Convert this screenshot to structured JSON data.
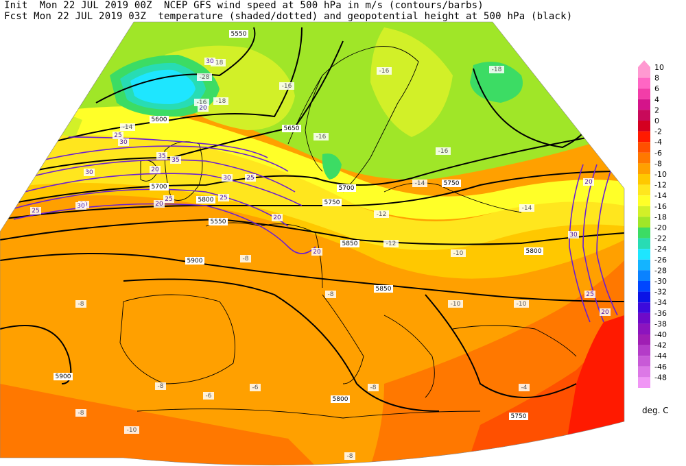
{
  "header": {
    "line1": "Init  Mon 22 JUL 2019 00Z  NCEP GFS wind speed at 500 hPa in m/s (contours/barbs)",
    "line2": "Fcst Mon 22 JUL 2019 03Z  temperature (shaded/dotted) and geopotential height at 500 hPa (black)"
  },
  "colorbar": {
    "unit_label": "deg. C",
    "entries": [
      {
        "label": "10",
        "color": "#ff99d1"
      },
      {
        "label": "8",
        "color": "#ff66c4"
      },
      {
        "label": "6",
        "color": "#f23da8"
      },
      {
        "label": "4",
        "color": "#d4148a"
      },
      {
        "label": "2",
        "color": "#c80a5a"
      },
      {
        "label": "0",
        "color": "#d40020"
      },
      {
        "label": "-2",
        "color": "#ff1a00"
      },
      {
        "label": "-4",
        "color": "#ff5000"
      },
      {
        "label": "-6",
        "color": "#ff7800"
      },
      {
        "label": "-8",
        "color": "#ffa000"
      },
      {
        "label": "-10",
        "color": "#ffc800"
      },
      {
        "label": "-12",
        "color": "#ffe61e"
      },
      {
        "label": "-14",
        "color": "#ffff28"
      },
      {
        "label": "-16",
        "color": "#d2f028"
      },
      {
        "label": "-18",
        "color": "#a0e628"
      },
      {
        "label": "-20",
        "color": "#3cdc64"
      },
      {
        "label": "-22",
        "color": "#28dcb4"
      },
      {
        "label": "-24",
        "color": "#1ee6ff"
      },
      {
        "label": "-26",
        "color": "#14b4ff"
      },
      {
        "label": "-28",
        "color": "#0a82ff"
      },
      {
        "label": "-30",
        "color": "#0046ff"
      },
      {
        "label": "-32",
        "color": "#0a14e6"
      },
      {
        "label": "-34",
        "color": "#3c0adc"
      },
      {
        "label": "-36",
        "color": "#6e0ac8"
      },
      {
        "label": "-38",
        "color": "#8c14be"
      },
      {
        "label": "-40",
        "color": "#a01eb4"
      },
      {
        "label": "-42",
        "color": "#b43cc8"
      },
      {
        "label": "-44",
        "color": "#c85ad7"
      },
      {
        "label": "-46",
        "color": "#dc78e6"
      },
      {
        "label": "-48",
        "color": "#f096f5"
      }
    ]
  },
  "map_labels": {
    "height": [
      "5550",
      "5600",
      "5650",
      "5700",
      "5750",
      "5700",
      "5750",
      "5800",
      "5550",
      "5800",
      "5850",
      "5900",
      "5900",
      "5850",
      "5800",
      "5750"
    ],
    "temp": [
      "-28",
      "-16",
      "-18",
      "-18",
      "-16",
      "-16",
      "-16",
      "-14",
      "-14",
      "-14",
      "-12",
      "-12",
      "-10",
      "-10",
      "-8",
      "-8",
      "-8",
      "-8",
      "-8",
      "-8",
      "-6",
      "-6",
      "-4",
      "-10",
      "-10",
      "-8",
      "-18",
      "-16"
    ],
    "wind": [
      "20",
      "30",
      "25",
      "30",
      "35",
      "35",
      "30",
      "25",
      "25",
      "30",
      "25",
      "20",
      "20",
      "30",
      "25",
      "20",
      "25",
      "30",
      "20",
      "20",
      "30",
      "20"
    ]
  },
  "colors": {
    "height_contour": "#000000",
    "wind_contour": "#6a1ed2",
    "wind_barbs": "#9a9a9a",
    "coastline": "#000000"
  }
}
